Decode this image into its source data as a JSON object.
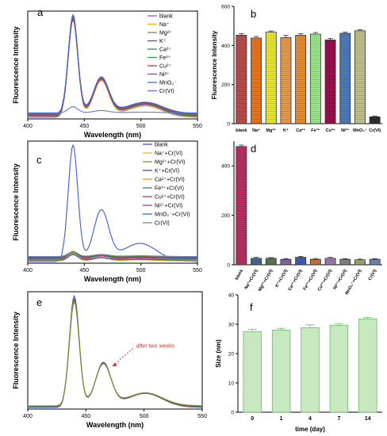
{
  "chart_data": [
    {
      "panel_label": "a",
      "type": "line",
      "xlabel": "Wavelength (nm)",
      "ylabel": "Fluorescence Intensity",
      "xlim": [
        400,
        550
      ],
      "xticks": [
        "400",
        "450",
        "500",
        "550"
      ],
      "grid": false,
      "legend_position": "top-right",
      "peaks": [
        {
          "x": 440,
          "y": 1.0
        },
        {
          "x": 465,
          "y": 0.35
        },
        {
          "x": 505,
          "y": 0.1
        }
      ],
      "series": [
        {
          "name": "blank",
          "color": "#7b5fd6",
          "scale": 0.98
        },
        {
          "name": "Na⁺",
          "color": "#f0b030",
          "scale": 0.95
        },
        {
          "name": "Mg²⁺",
          "color": "#8a8a30",
          "scale": 1.0
        },
        {
          "name": "K⁺",
          "color": "#6a3fa0",
          "scale": 0.97
        },
        {
          "name": "Ca²⁺",
          "color": "#2e8b57",
          "scale": 0.96
        },
        {
          "name": "Fe³⁺",
          "color": "#3a9a4a",
          "scale": 0.94
        },
        {
          "name": "Cu²⁺",
          "color": "#c03a3a",
          "scale": 0.93
        },
        {
          "name": "Ni²⁺",
          "color": "#9a3ab0",
          "scale": 0.95
        },
        {
          "name": "MnO₄⁻",
          "color": "#3a6ad0",
          "scale": 0.96
        },
        {
          "name": "Cr(VI)",
          "color": "#5a7ae0",
          "scale": 0.06
        }
      ]
    },
    {
      "panel_label": "b",
      "type": "bar",
      "ylabel": "Fluorescence Intensity",
      "ylim": [
        0,
        600
      ],
      "yticks": [
        "0",
        "200",
        "400",
        "600"
      ],
      "grid": false,
      "categories": [
        "blank",
        "Na⁺",
        "Mg²⁺",
        "K⁺",
        "Ca²⁺",
        "Fe³⁺",
        "Cu²⁺",
        "Ni²⁺",
        "MnO₄⁻",
        "Cr(VI)"
      ],
      "values": [
        452,
        438,
        468,
        440,
        452,
        458,
        428,
        462,
        475,
        35
      ],
      "errors": [
        8,
        8,
        6,
        12,
        8,
        8,
        8,
        6,
        6,
        4
      ],
      "colors": [
        "#c0504d",
        "#f07820",
        "#f0f030",
        "#f0a050",
        "#f09030",
        "#a0f090",
        "#a01050",
        "#5080c0",
        "#c8c890",
        "#303030"
      ]
    },
    {
      "panel_label": "c",
      "type": "line",
      "xlabel": "Wavelength (nm)",
      "ylabel": "Fluorescence Intensity",
      "xlim": [
        400,
        550
      ],
      "xticks": [
        "400",
        "450",
        "500",
        "550"
      ],
      "grid": false,
      "legend_position": "top-right",
      "peaks": [
        {
          "x": 440,
          "y": 1.0
        },
        {
          "x": 465,
          "y": 0.42
        },
        {
          "x": 500,
          "y": 0.14
        }
      ],
      "series": [
        {
          "name": "blank",
          "color": "#3a5ad8",
          "scale": 1.0
        },
        {
          "name": "Na⁺+Cr(VI)",
          "color": "#f0b030",
          "scale": 0.06
        },
        {
          "name": "Mg²⁺+Cr(VI)",
          "color": "#8a8a30",
          "scale": 0.05
        },
        {
          "name": "K⁺+Cr(VI)",
          "color": "#6a3fa0",
          "scale": 0.045
        },
        {
          "name": "Ca²⁺+Cr(VI)",
          "color": "#d0a020",
          "scale": 0.07
        },
        {
          "name": "Fe³⁺+Cr(VI)",
          "color": "#2e8b57",
          "scale": 0.05
        },
        {
          "name": "Cu²⁺+Cr(VI)",
          "color": "#c03a3a",
          "scale": 0.055
        },
        {
          "name": "Ni²⁺+Cr(VI)",
          "color": "#9a3ab0",
          "scale": 0.05
        },
        {
          "name": "MnO₄⁻+Cr(VI)",
          "color": "#3a6ad0",
          "scale": 0.045
        },
        {
          "name": "Cr(VI)",
          "color": "#60a060",
          "scale": 0.04
        }
      ]
    },
    {
      "panel_label": "d",
      "type": "bar",
      "ylim": [
        0,
        500
      ],
      "yticks": [
        "0",
        "200",
        "400"
      ],
      "grid": false,
      "categories": [
        "blank",
        "Na⁺+Cr(VI)",
        "Mg²⁺+Cr(VI)",
        "K⁺+Cr(VI)",
        "Ca²⁺+Cr(VI)",
        "Fe³⁺+Cr(VI)",
        "Cu²⁺+Cr(VI)",
        "Ni²⁺+Cr(VI)",
        "MnO₄⁻+Cr(VI)",
        "Cr(VI)"
      ],
      "values": [
        478,
        26,
        26,
        22,
        30,
        22,
        26,
        22,
        20,
        22
      ],
      "errors": [
        6,
        4,
        3,
        3,
        4,
        3,
        4,
        3,
        3,
        3
      ],
      "colors": [
        "#c0306a",
        "#4a6a9a",
        "#5a7a5a",
        "#8a6ab0",
        "#4060c0",
        "#d07840",
        "#a080c0",
        "#8a8a8a",
        "#a0b070",
        "#7090c0"
      ]
    },
    {
      "panel_label": "e",
      "type": "line",
      "xlabel": "Wavelength (nm)",
      "ylabel": "Fluorescence Intensity",
      "xlim": [
        400,
        550
      ],
      "xticks": [
        "400",
        "450",
        "500",
        "550"
      ],
      "grid": false,
      "annotation": "after two weeks",
      "peaks": [
        {
          "x": 440,
          "y": 1.0
        },
        {
          "x": 465,
          "y": 0.38
        },
        {
          "x": 502,
          "y": 0.11
        }
      ],
      "series": [
        {
          "color": "#3a5ad8",
          "scale": 1.0
        },
        {
          "color": "#c03a3a",
          "scale": 0.97
        },
        {
          "color": "#2e8b57",
          "scale": 0.95
        },
        {
          "color": "#8a8a30",
          "scale": 0.93
        }
      ]
    },
    {
      "panel_label": "f",
      "type": "bar",
      "xlabel": "time (day)",
      "ylabel": "Size (nm)",
      "ylim": [
        0,
        40
      ],
      "yticks": [
        "0",
        "10",
        "20",
        "30",
        "40"
      ],
      "grid": false,
      "categories": [
        "0",
        "1",
        "4",
        "7",
        "14"
      ],
      "values": [
        27.5,
        28,
        28.8,
        29.6,
        31.8
      ],
      "errors": [
        0.8,
        0.6,
        1.0,
        0.6,
        0.5
      ],
      "color": "#c8e8c0",
      "edge_color": "#6ab86a"
    }
  ]
}
